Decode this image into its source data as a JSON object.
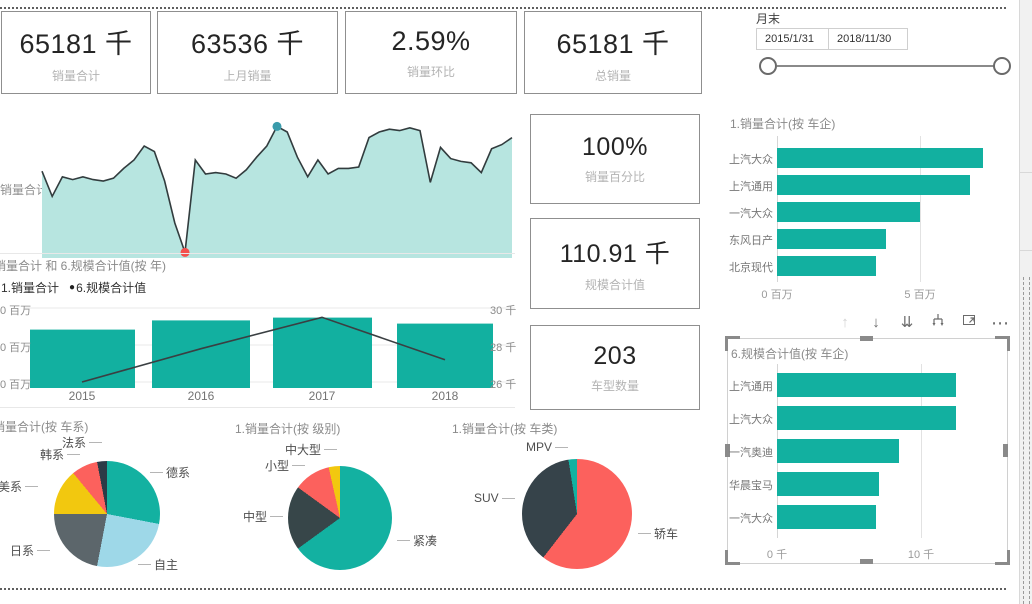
{
  "kpi_top": [
    {
      "value": "65181 千",
      "label": "销量合计"
    },
    {
      "value": "63536 千",
      "label": "上月销量"
    },
    {
      "value": "2.59%",
      "label": "销量环比"
    },
    {
      "value": "65181 千",
      "label": "总销量"
    }
  ],
  "kpi_mid": [
    {
      "value": "100%",
      "label": "销量百分比"
    },
    {
      "value": "110.91 千",
      "label": "规模合计值"
    },
    {
      "value": "203",
      "label": "车型数量"
    }
  ],
  "slicer": {
    "title": "月末",
    "start_date": "2015/1/31",
    "end_date": "2018/11/30"
  },
  "toolbar": {
    "icons": [
      "drill-up",
      "drill-down",
      "go-to-next-level",
      "expand-all-down",
      "focus-mode",
      "more-options"
    ]
  },
  "theme": {
    "teal": "#12b0a0",
    "area_fill": "#b7e5e0",
    "area_line": "#323c3e",
    "red": "#fc615d",
    "yellow": "#f2c80f",
    "dark": "#374649",
    "light_blue": "#9ed8e8",
    "slate": "#5c666b"
  },
  "chart_data": {
    "area": {
      "type": "area",
      "label": "销量合计",
      "x_meaning": "月末 2015/1 - 2018/11",
      "values_relative": [
        62,
        44,
        58,
        56,
        58,
        56,
        55,
        57,
        64,
        70,
        80,
        76,
        55,
        25,
        4,
        70,
        60,
        61,
        60,
        57,
        63,
        72,
        80,
        94,
        90,
        72,
        58,
        70,
        60,
        64,
        64,
        65,
        86,
        90,
        92,
        91,
        93,
        91,
        54,
        79,
        71,
        69,
        68,
        61,
        78,
        81,
        86
      ],
      "min_dot_color": "#f4504d",
      "max_dot_color": "#3a9bab"
    },
    "combo": {
      "type": "bar+line",
      "title": "销量合计 和 6.规模合计值(按 年)",
      "legend": [
        "1.销量合计",
        "6.规模合计值"
      ],
      "categories": [
        "2015",
        "2016",
        "2017",
        "2018"
      ],
      "bar_series": {
        "name": "1.销量合计",
        "unit": "百万",
        "values": [
          14.6,
          16.9,
          17.6,
          16.1
        ]
      },
      "line_series": {
        "name": "6.规模合计值",
        "unit": "千",
        "values": [
          26.0,
          27.8,
          29.5,
          27.2
        ]
      },
      "left_axis_labels": [
        "0 百万",
        "0 百万",
        "0 百万"
      ],
      "right_axis_labels": [
        "30 千",
        "28 千",
        "26 千"
      ],
      "ylim_left": [
        0,
        20
      ],
      "ylim_right": [
        26,
        30
      ]
    },
    "bars_company_sales": {
      "type": "bar-horizontal",
      "title": "1.销量合计(按 车企)",
      "categories": [
        "上汽大众",
        "上汽通用",
        "一汽大众",
        "东风日产",
        "北京现代"
      ],
      "values": [
        7.2,
        6.75,
        5.0,
        3.8,
        3.45
      ],
      "unit": "百万",
      "x_ticks": [
        "0 百万",
        "5 百万"
      ]
    },
    "bars_company_scale": {
      "type": "bar-horizontal",
      "title": "6.规模合计值(按 车企)",
      "categories": [
        "上汽通用",
        "上汽大众",
        "一汽奥迪",
        "华晨宝马",
        "一汽大众"
      ],
      "values": [
        12.4,
        12.4,
        8.5,
        7.1,
        6.9
      ],
      "unit": "千",
      "x_ticks": [
        "0 千",
        "10 千"
      ]
    },
    "pies": [
      {
        "title": "销量合计(按 车系)",
        "slices": [
          {
            "label": "德系",
            "value": 28,
            "color": "#13b1a1"
          },
          {
            "label": "自主",
            "value": 25,
            "color": "#9ed8e8"
          },
          {
            "label": "日系",
            "value": 22,
            "color": "#5c666b"
          },
          {
            "label": "美系",
            "value": 14,
            "color": "#f2c80f"
          },
          {
            "label": "韩系",
            "value": 8,
            "color": "#fc615d"
          },
          {
            "label": "法系",
            "value": 3,
            "color": "#2c3b47"
          }
        ]
      },
      {
        "title": "1.销量合计(按 级别)",
        "slices": [
          {
            "label": "紧凑",
            "value": 65,
            "color": "#13b1a1"
          },
          {
            "label": "中型",
            "value": 20,
            "color": "#374649"
          },
          {
            "label": "小型",
            "value": 11.5,
            "color": "#fc615d"
          },
          {
            "label": "中大型",
            "value": 3.5,
            "color": "#f2c80f"
          }
        ]
      },
      {
        "title": "1.销量合计(按 车类)",
        "slices": [
          {
            "label": "轿车",
            "value": 60.5,
            "color": "#fc615d"
          },
          {
            "label": "SUV",
            "value": 37,
            "color": "#36434a"
          },
          {
            "label": "MPV",
            "value": 2.5,
            "color": "#13b1a1"
          }
        ]
      }
    ]
  }
}
